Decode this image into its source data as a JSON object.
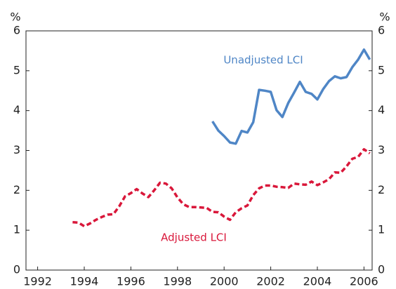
{
  "chart_data": {
    "type": "line",
    "ylabel": "%",
    "y2label": "%",
    "xlim": [
      1991.5,
      2006.35
    ],
    "xticks": [
      1992,
      1994,
      1996,
      1998,
      2000,
      2002,
      2004,
      2006
    ],
    "ylim": [
      0,
      6
    ],
    "yticks": [
      0,
      1,
      2,
      3,
      4,
      5,
      6
    ],
    "y2lim": [
      0,
      6
    ],
    "y2ticks": [
      0,
      1,
      2,
      3,
      4,
      5,
      6
    ],
    "series": [
      {
        "name": "Unadjusted LCI",
        "color": "#4f86c6",
        "dashed": false,
        "x": [
          1999.5,
          1999.75,
          2000,
          2000.25,
          2000.5,
          2000.75,
          2001,
          2001.25,
          2001.5,
          2001.75,
          2002,
          2002.25,
          2002.5,
          2002.75,
          2003,
          2003.25,
          2003.5,
          2003.75,
          2004,
          2004.25,
          2004.5,
          2004.75,
          2005,
          2005.25,
          2005.5,
          2005.75,
          2006,
          2006.25
        ],
        "values": [
          3.73,
          3.5,
          3.36,
          3.2,
          3.17,
          3.49,
          3.45,
          3.71,
          4.52,
          4.5,
          4.47,
          4.01,
          3.84,
          4.19,
          4.45,
          4.72,
          4.47,
          4.42,
          4.28,
          4.54,
          4.74,
          4.86,
          4.81,
          4.84,
          5.09,
          5.28,
          5.53,
          5.28
        ]
      },
      {
        "name": "Adjusted LCI",
        "color": "#d9173a",
        "dashed": true,
        "x": [
          1993.5,
          1993.75,
          1994,
          1994.25,
          1994.5,
          1994.75,
          1995,
          1995.25,
          1995.5,
          1995.75,
          1996,
          1996.25,
          1996.5,
          1996.75,
          1997,
          1997.25,
          1997.5,
          1997.75,
          1998,
          1998.25,
          1998.5,
          1998.75,
          1999,
          1999.25,
          1999.5,
          1999.75,
          2000,
          2000.25,
          2000.5,
          2000.75,
          2001,
          2001.25,
          2001.5,
          2001.75,
          2002,
          2002.25,
          2002.5,
          2002.75,
          2003,
          2003.25,
          2003.5,
          2003.75,
          2004,
          2004.25,
          2004.5,
          2004.75,
          2005,
          2005.25,
          2005.5,
          2005.75,
          2006,
          2006.25
        ],
        "values": [
          1.2,
          1.19,
          1.1,
          1.17,
          1.26,
          1.33,
          1.39,
          1.4,
          1.6,
          1.85,
          1.93,
          2.03,
          1.92,
          1.83,
          2.0,
          2.19,
          2.17,
          2.05,
          1.82,
          1.65,
          1.58,
          1.58,
          1.57,
          1.56,
          1.46,
          1.45,
          1.34,
          1.26,
          1.45,
          1.55,
          1.62,
          1.88,
          2.05,
          2.12,
          2.12,
          2.09,
          2.08,
          2.06,
          2.17,
          2.15,
          2.14,
          2.22,
          2.13,
          2.2,
          2.28,
          2.45,
          2.44,
          2.6,
          2.79,
          2.84,
          3.03,
          2.93
        ]
      }
    ]
  }
}
